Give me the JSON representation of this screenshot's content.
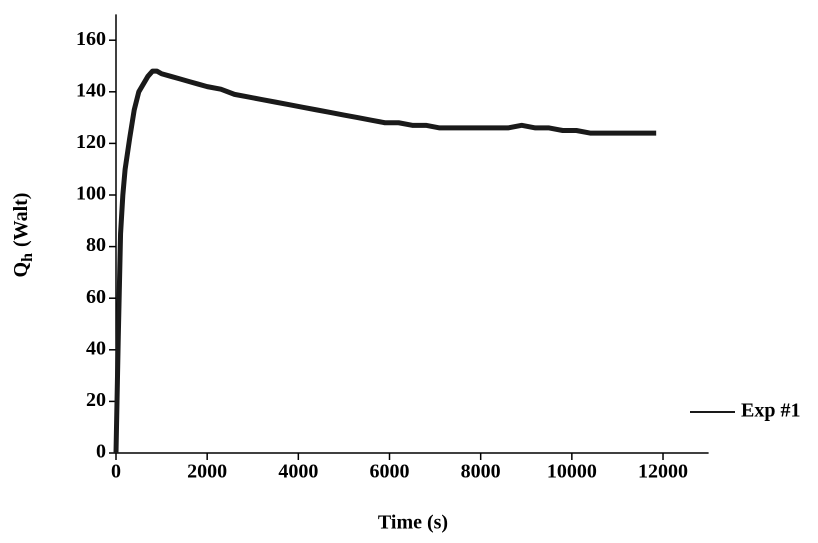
{
  "chart_data": {
    "type": "line",
    "x_label": "Time (s)",
    "y_label": {
      "main": "Q",
      "subscript": "h",
      "unit": "(Walt)"
    },
    "x": [
      0,
      50,
      100,
      150,
      200,
      300,
      400,
      500,
      600,
      700,
      800,
      900,
      1000,
      1200,
      1400,
      1600,
      1800,
      2000,
      2300,
      2600,
      2900,
      3200,
      3500,
      3800,
      4100,
      4400,
      4700,
      5000,
      5300,
      5600,
      5900,
      6200,
      6500,
      6800,
      7100,
      7400,
      7700,
      8000,
      8300,
      8600,
      8900,
      9200,
      9500,
      9800,
      10100,
      10400,
      10700,
      11000,
      11300,
      11600,
      11850
    ],
    "series": [
      {
        "name": "Exp #1",
        "color": "#1a1a1a",
        "values": [
          0,
          45,
          85,
          100,
          110,
          122,
          133,
          140,
          143,
          146,
          148,
          148,
          147,
          146,
          145,
          144,
          143,
          142,
          141,
          139,
          138,
          137,
          136,
          135,
          134,
          133,
          132,
          131,
          130,
          129,
          128,
          128,
          127,
          127,
          126,
          126,
          126,
          126,
          126,
          126,
          127,
          126,
          126,
          125,
          125,
          124,
          124,
          124,
          124,
          124,
          124
        ]
      }
    ],
    "xlim": [
      0,
      13000
    ],
    "xticks": [
      0,
      2000,
      4000,
      6000,
      8000,
      10000,
      12000
    ],
    "ylim": [
      0,
      170
    ],
    "yticks": [
      0,
      20,
      40,
      60,
      80,
      100,
      120,
      140,
      160
    ],
    "grid": false,
    "legend": "bottom-right"
  }
}
